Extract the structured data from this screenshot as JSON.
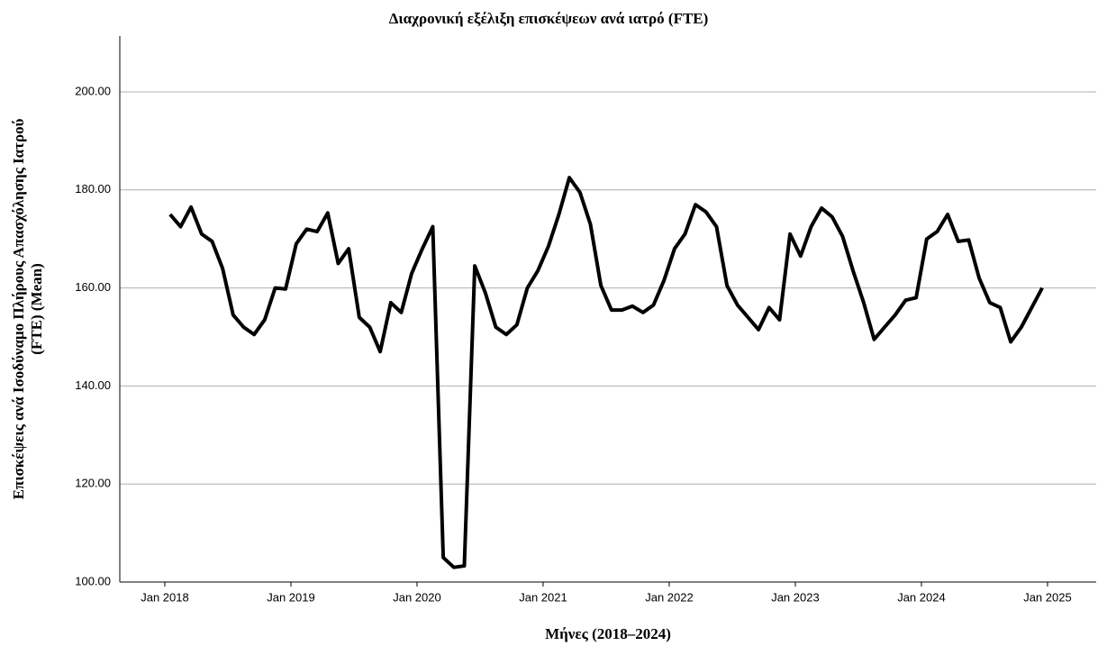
{
  "chart_data": {
    "type": "line",
    "title": "Διαχρονική εξέλιξη επισκέψεων ανά ιατρό (FTE)",
    "xlabel": "Μήνες (2018–2024)",
    "ylabel": [
      "Επισκέψεις ανά Ισοδύναμο Πλήρους Απασχόλησης Ιατρού",
      "(FTE) (Mean)"
    ],
    "x": [
      2018.042,
      2018.125,
      2018.208,
      2018.292,
      2018.375,
      2018.458,
      2018.542,
      2018.625,
      2018.708,
      2018.792,
      2018.875,
      2018.958,
      2019.042,
      2019.125,
      2019.208,
      2019.292,
      2019.375,
      2019.458,
      2019.542,
      2019.625,
      2019.708,
      2019.792,
      2019.875,
      2019.958,
      2020.042,
      2020.125,
      2020.208,
      2020.292,
      2020.375,
      2020.458,
      2020.542,
      2020.625,
      2020.708,
      2020.792,
      2020.875,
      2020.958,
      2021.042,
      2021.125,
      2021.208,
      2021.292,
      2021.375,
      2021.458,
      2021.542,
      2021.625,
      2021.708,
      2021.792,
      2021.875,
      2021.958,
      2022.042,
      2022.125,
      2022.208,
      2022.292,
      2022.375,
      2022.458,
      2022.542,
      2022.625,
      2022.708,
      2022.792,
      2022.875,
      2022.958,
      2023.042,
      2023.125,
      2023.208,
      2023.292,
      2023.375,
      2023.458,
      2023.542,
      2023.625,
      2023.708,
      2023.792,
      2023.875,
      2023.958,
      2024.042,
      2024.125,
      2024.208,
      2024.292,
      2024.375,
      2024.458,
      2024.542,
      2024.625,
      2024.708,
      2024.792,
      2024.875,
      2024.958
    ],
    "series": [
      {
        "name": "Mean",
        "color": "#000000",
        "values": [
          175,
          172.5,
          176.5,
          171,
          169.5,
          164,
          154.5,
          152,
          150.5,
          153.5,
          160,
          159.8,
          169,
          172,
          171.5,
          175.3,
          165,
          168,
          154,
          152,
          147,
          157,
          155,
          163,
          168,
          172.5,
          105,
          103,
          103.3,
          164.5,
          159,
          152,
          150.5,
          152.5,
          160,
          163.5,
          168.5,
          175,
          182.5,
          179.5,
          173,
          160.5,
          155.5,
          155.5,
          156.3,
          155,
          156.5,
          161.5,
          168,
          171,
          177,
          175.5,
          172.5,
          160.5,
          156.5,
          154,
          151.5,
          156,
          153.5,
          171,
          166.5,
          172.5,
          176.3,
          174.5,
          170.5,
          163.5,
          157,
          149.5,
          152,
          154.5,
          157.5,
          158,
          170,
          171.5,
          175,
          169.5,
          169.8,
          162,
          157,
          156,
          149,
          152,
          156,
          160
        ]
      }
    ],
    "xlim": [
      2017.643,
      2025.386
    ],
    "xticks": [
      {
        "value": 2018,
        "label": "Jan 2018"
      },
      {
        "value": 2019,
        "label": "Jan 2019"
      },
      {
        "value": 2020,
        "label": "Jan 2020"
      },
      {
        "value": 2021,
        "label": "Jan 2021"
      },
      {
        "value": 2022,
        "label": "Jan 2022"
      },
      {
        "value": 2023,
        "label": "Jan 2023"
      },
      {
        "value": 2024,
        "label": "Jan 2024"
      },
      {
        "value": 2025,
        "label": "Jan 2025"
      }
    ],
    "ylim": [
      100,
      211.4
    ],
    "yticks": [
      {
        "value": 100,
        "label": "100.00"
      },
      {
        "value": 120,
        "label": "120.00"
      },
      {
        "value": 140,
        "label": "140.00"
      },
      {
        "value": 160,
        "label": "160.00"
      },
      {
        "value": 180,
        "label": "180.00"
      },
      {
        "value": 200,
        "label": "200.00"
      }
    ],
    "grid": true
  }
}
